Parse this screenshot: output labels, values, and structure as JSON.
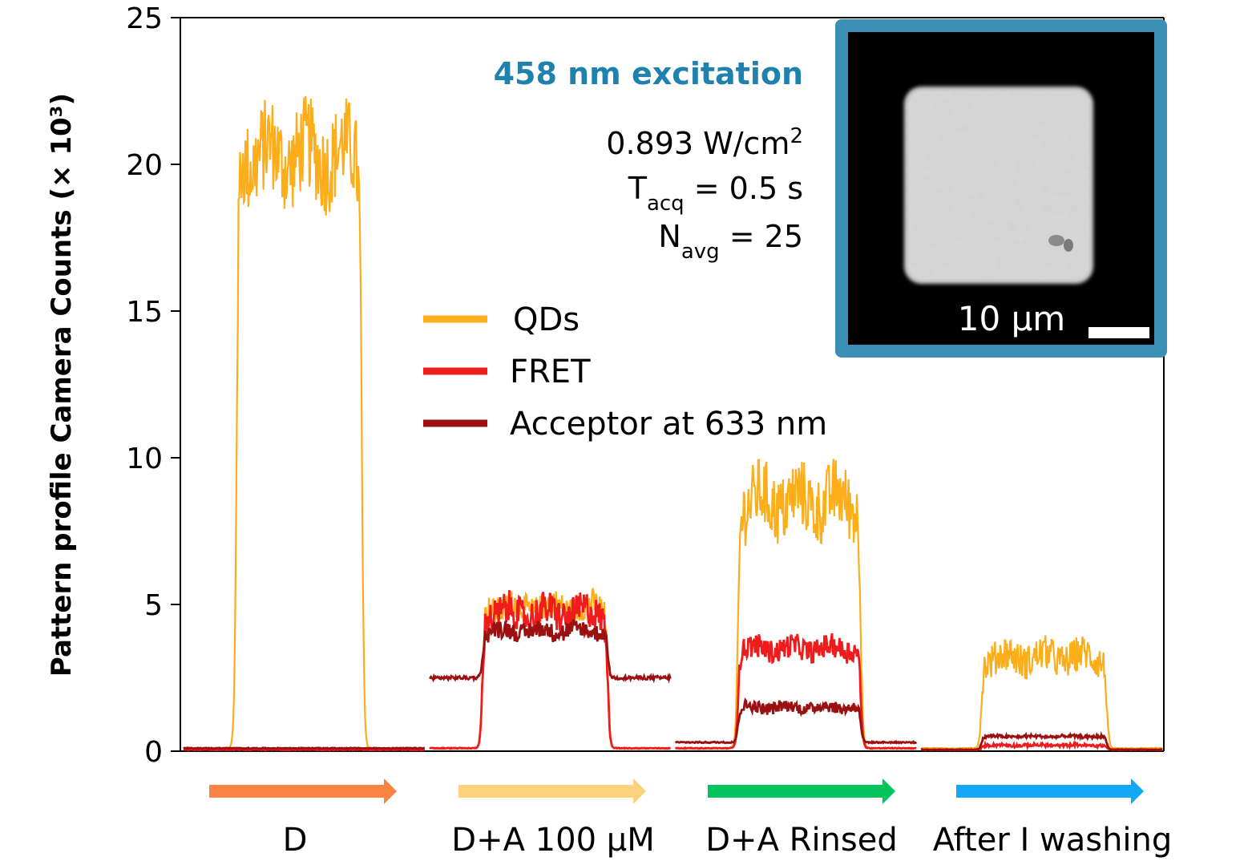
{
  "chart_data": {
    "type": "line",
    "title": "",
    "xlabel": "",
    "ylabel": "Pattern profile Camera Counts (× 10³)",
    "ylim": [
      0,
      25
    ],
    "yticks": [
      "0",
      "5",
      "10",
      "15",
      "20",
      "25"
    ],
    "grid": false,
    "legend": {
      "placement": "center",
      "entries": [
        {
          "name": "QDs",
          "color": "#fbad1a"
        },
        {
          "name": "FRET",
          "color": "#ee1c1c"
        },
        {
          "name": "Acceptor at 633 nm",
          "color": "#9b1111"
        }
      ]
    },
    "phases": [
      {
        "label": "D",
        "arrow_color": "#f98442"
      },
      {
        "label": "D+A 100 μM",
        "arrow_color": "#fdd27f"
      },
      {
        "label": "D+A Rinsed",
        "arrow_color": "#04c45c"
      },
      {
        "label": "After I washing",
        "arrow_color": "#12a8f7"
      }
    ],
    "series": [
      {
        "name": "QDs",
        "color": "#fbad1a",
        "segments": [
          {
            "base": 0.1,
            "plateau": 20.3,
            "amp": 1.6
          },
          {
            "base": 0.1,
            "plateau": 4.9,
            "amp": 0.5
          },
          {
            "base": 0.1,
            "plateau": 8.5,
            "amp": 1.2
          },
          {
            "base": 0.1,
            "plateau": 3.2,
            "amp": 0.6
          }
        ]
      },
      {
        "name": "FRET",
        "color": "#ee1c1c",
        "segments": [
          {
            "base": 0.05,
            "plateau": 0.05,
            "amp": 0.0
          },
          {
            "base": 0.1,
            "plateau": 4.7,
            "amp": 0.6
          },
          {
            "base": 0.1,
            "plateau": 3.5,
            "amp": 0.4
          },
          {
            "base": 0.05,
            "plateau": 0.2,
            "amp": 0.05
          }
        ]
      },
      {
        "name": "Acceptor at 633 nm",
        "color": "#9b1111",
        "segments": [
          {
            "base": 0.1,
            "plateau": 0.1,
            "amp": 0.0
          },
          {
            "base": 2.5,
            "plateau": 4.1,
            "amp": 0.3
          },
          {
            "base": 0.3,
            "plateau": 1.5,
            "amp": 0.2
          },
          {
            "base": 0.05,
            "plateau": 0.5,
            "amp": 0.05
          }
        ]
      }
    ]
  },
  "annotations": {
    "excitation": "458 nm excitation",
    "power": "0.893 W/cm",
    "power_sup": "2",
    "tacq_symbol": "T",
    "tacq_sub": "acq",
    "tacq_value": " = 0.5 s",
    "navg_symbol": "N",
    "navg_sub": "avg",
    "navg_value": " = 25"
  },
  "inset": {
    "frame_color": "#3a8fb7",
    "scale_bar_label": "10 μm"
  }
}
